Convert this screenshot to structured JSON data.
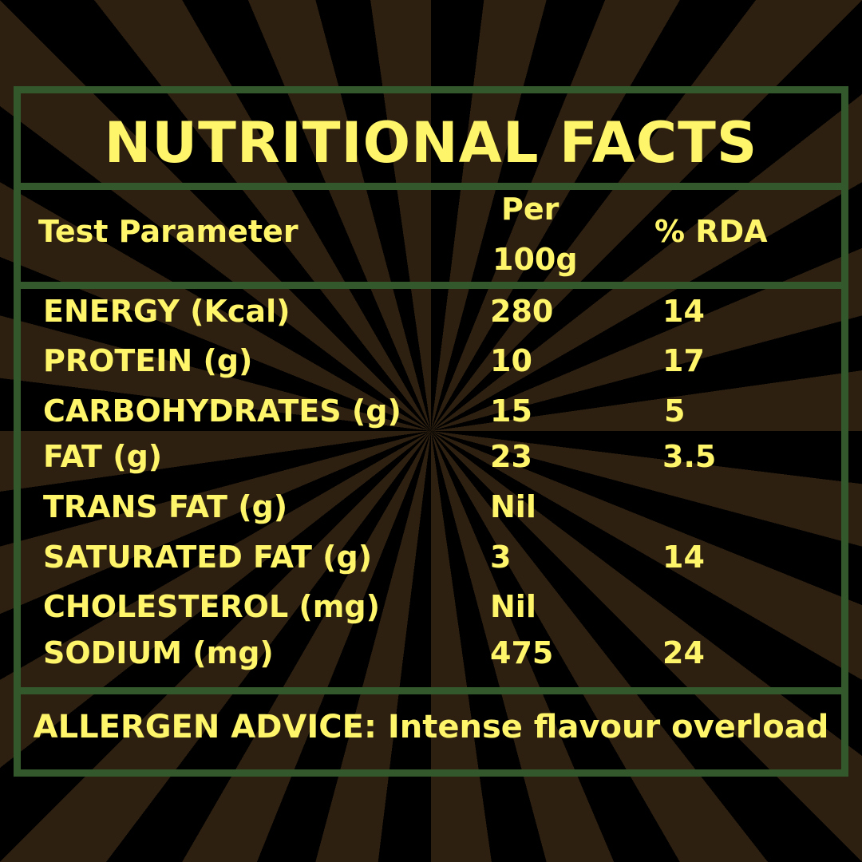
{
  "title": "NUTRITIONAL FACTS",
  "headers": {
    "parameter": "Test Parameter",
    "per_line1": "Per",
    "per_line2": "100g",
    "rda": "% RDA"
  },
  "rows": [
    {
      "name": "ENERGY (Kcal)",
      "per100g": "280",
      "rda": "14"
    },
    {
      "name": "PROTEIN (g)",
      "per100g": "10",
      "rda": "17"
    },
    {
      "name": "CARBOHYDRATES (g)",
      "per100g": "15",
      "rda": "5"
    },
    {
      "name": "FAT (g)",
      "per100g": "23",
      "rda": "3.5"
    },
    {
      "name": "TRANS FAT (g)",
      "per100g": "Nil",
      "rda": ""
    },
    {
      "name": "SATURATED FAT (g)",
      "per100g": "3",
      "rda": "14"
    },
    {
      "name": "CHOLESTEROL (mg)",
      "per100g": "Nil",
      "rda": ""
    },
    {
      "name": "SODIUM (mg)",
      "per100g": "475",
      "rda": "24"
    }
  ],
  "allergen": "ALLERGEN ADVICE: Intense flavour overload",
  "colors": {
    "text": "#fff56a",
    "border": "#33582c",
    "ray": "#2e2010",
    "background": "#000000"
  }
}
